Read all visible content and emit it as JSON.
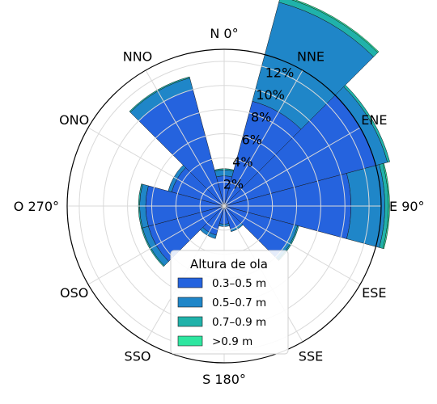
{
  "chart_data": {
    "type": "wind-rose",
    "directions": [
      "N 0°",
      "NNE",
      "ENE",
      "E 90°",
      "ESE",
      "SSE",
      "S 180°",
      "SSO",
      "OSO",
      "O 270°",
      "ONO",
      "NNO"
    ],
    "direction_angles_deg": [
      0,
      30,
      60,
      90,
      120,
      150,
      180,
      210,
      240,
      270,
      300,
      330
    ],
    "radial_ticks": [
      "2%",
      "4%",
      "6%",
      "8%",
      "10%",
      "12%"
    ],
    "radial_values": [
      2,
      4,
      6,
      8,
      10,
      12
    ],
    "rmax": 13,
    "legend_title": "Altura de ola",
    "series": [
      {
        "name": "0.3–0.5 m",
        "color": "#2563de",
        "values": [
          2.5,
          9.0,
          13.0,
          10.5,
          6.0,
          2.0,
          1.5,
          2.5,
          6.5,
          6.5,
          4.5,
          10.0
        ]
      },
      {
        "name": "0.5–0.7 m",
        "color": "#1f86c8",
        "values": [
          0.5,
          8.5,
          1.0,
          2.8,
          0.3,
          0.2,
          0.2,
          0.3,
          0.5,
          0.5,
          0.3,
          1.0
        ]
      },
      {
        "name": "0.7–0.9 m",
        "color": "#20b2aa",
        "values": [
          0.1,
          0.5,
          0.2,
          0.3,
          0.1,
          0.0,
          0.0,
          0.0,
          0.1,
          0.1,
          0.0,
          0.1
        ]
      },
      {
        "name": ">0.9 m",
        "color": "#2ee6a0",
        "values": [
          0.0,
          0.1,
          0.0,
          0.1,
          0.0,
          0.0,
          0.0,
          0.0,
          0.0,
          0.0,
          0.0,
          0.0
        ]
      }
    ],
    "grid": true
  }
}
